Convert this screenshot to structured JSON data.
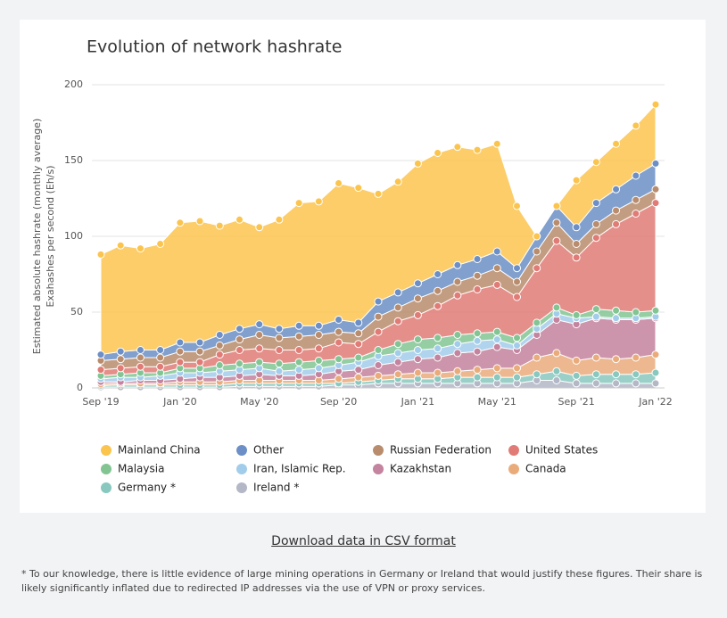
{
  "chart_data": {
    "type": "area",
    "stacked": true,
    "title": "Evolution of network hashrate",
    "ylabel": [
      "Estimated absolute hashrate (monthly average)",
      "Exahashes per second (Eh/s)"
    ],
    "categories": [
      "Sep '19",
      null,
      null,
      null,
      "Jan '20",
      null,
      null,
      null,
      "May '20",
      null,
      null,
      null,
      "Sep '20",
      null,
      null,
      null,
      "Jan '21",
      null,
      null,
      null,
      "May '21",
      null,
      null,
      null,
      "Sep '21",
      null,
      null,
      null,
      "Jan '22"
    ],
    "ylim": [
      0,
      200
    ],
    "yticks": [
      0,
      50,
      100,
      150,
      200
    ],
    "grid": true,
    "series": [
      {
        "name": "Mainland China",
        "color": "#fbc44d",
        "values": [
          66,
          70,
          67,
          70,
          79,
          80,
          72,
          72,
          64,
          72,
          81,
          82,
          90,
          89,
          71,
          73,
          79,
          80,
          78,
          72,
          71,
          41,
          0,
          0,
          31,
          27,
          30,
          33,
          39
        ]
      },
      {
        "name": "Other",
        "color": "#6b8fc6",
        "values": [
          4,
          5,
          5,
          5,
          6,
          6,
          7,
          7,
          7,
          6,
          7,
          6,
          8,
          7,
          10,
          10,
          10,
          11,
          11,
          11,
          11,
          9,
          10,
          11,
          11,
          14,
          14,
          16,
          17
        ]
      },
      {
        "name": "Russian Federation",
        "color": "#b88c6c",
        "values": [
          6,
          6,
          6,
          6,
          7,
          7,
          6,
          7,
          9,
          8,
          9,
          9,
          7,
          7,
          10,
          9,
          11,
          10,
          9,
          9,
          11,
          10,
          11,
          12,
          9,
          9,
          9,
          9,
          9
        ]
      },
      {
        "name": "United States",
        "color": "#e07b76",
        "values": [
          4,
          4,
          4,
          4,
          4,
          4,
          7,
          9,
          9,
          9,
          8,
          8,
          11,
          9,
          12,
          15,
          16,
          21,
          26,
          29,
          31,
          27,
          36,
          44,
          38,
          47,
          57,
          65,
          71
        ]
      },
      {
        "name": "Malaysia",
        "color": "#82c593",
        "values": [
          2,
          2,
          3,
          2,
          3,
          3,
          4,
          4,
          4,
          5,
          5,
          5,
          4,
          3,
          4,
          6,
          7,
          7,
          6,
          5,
          5,
          5,
          4,
          4,
          2,
          5,
          5,
          4,
          4
        ]
      },
      {
        "name": "Iran, Islamic Rep.",
        "color": "#a2cdea",
        "values": [
          2,
          3,
          2,
          3,
          4,
          3,
          4,
          4,
          4,
          3,
          4,
          4,
          4,
          5,
          6,
          6,
          6,
          6,
          6,
          7,
          5,
          3,
          4,
          4,
          4,
          1,
          1,
          1,
          1
        ]
      },
      {
        "name": "Kazakhstan",
        "color": "#c4839e",
        "values": [
          1.5,
          1,
          2,
          2,
          2,
          3,
          3,
          3,
          4,
          3,
          3,
          4,
          5,
          5,
          7,
          8,
          9,
          10,
          12,
          12,
          14,
          12,
          15,
          22,
          24,
          26,
          26,
          25,
          24
        ]
      },
      {
        "name": "Canada",
        "color": "#eaab7b",
        "values": [
          1,
          1,
          1,
          1,
          2,
          2,
          2,
          2,
          2,
          2,
          2,
          2,
          3,
          3,
          3,
          3,
          4,
          4,
          4,
          5,
          6,
          6,
          11,
          12,
          10,
          11,
          10,
          11,
          12
        ]
      },
      {
        "name": "Germany *",
        "color": "#88c8be",
        "values": [
          1,
          1.5,
          1.5,
          1.5,
          1.5,
          1.5,
          1.5,
          2,
          2,
          2,
          2,
          2,
          1,
          2,
          2,
          3,
          3,
          3,
          4,
          4,
          4,
          4,
          4,
          6,
          5,
          6,
          6,
          6,
          7
        ]
      },
      {
        "name": "Ireland *",
        "color": "#b3b7c6",
        "values": [
          0.5,
          0.5,
          0.5,
          0.5,
          0.5,
          0.5,
          0.5,
          1,
          1,
          1,
          1,
          1,
          2,
          2,
          3,
          3,
          3,
          3,
          3,
          3,
          3,
          3,
          5,
          5,
          3,
          3,
          3,
          3,
          3
        ]
      }
    ]
  },
  "link": "Download data in CSV format",
  "footnote": "* To our knowledge, there is little evidence of large mining operations in Germany or Ireland that would justify these figures. Their share is likely significantly inflated due to redirected IP addresses via the use of VPN or proxy services."
}
